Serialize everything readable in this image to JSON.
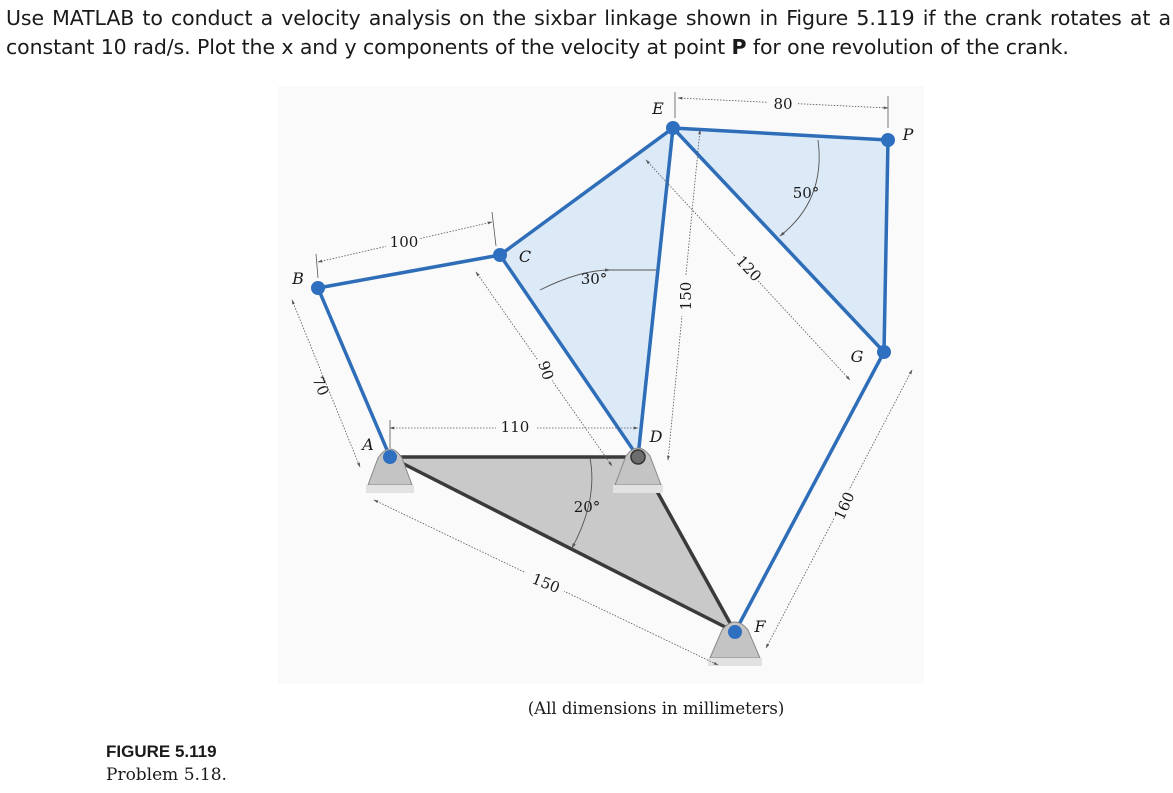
{
  "problem": {
    "line1": "Use MATLAB to conduct a velocity analysis on the sixbar linkage shown in Figure 5.119 if the crank rotates at a",
    "line2_pre": "constant 10 rad/s. Plot the x and y components of the velocity at point ",
    "line2_point": "P",
    "line2_post": " for one revolution of the crank."
  },
  "figure": {
    "points": {
      "A": "A",
      "B": "B",
      "C": "C",
      "D": "D",
      "E": "E",
      "F": "F",
      "G": "G",
      "P": "P"
    },
    "dimensions": {
      "AB": "70",
      "BC": "100",
      "CD": "90",
      "AD": "110",
      "AF": "150",
      "DE": "150",
      "EG": "120",
      "EP": "80",
      "GF": "160",
      "angle_C": "30°",
      "angle_A": "20°",
      "angle_E": "50°"
    },
    "note": "(All dimensions in millimeters)",
    "caption_title": "FIGURE 5.119",
    "caption_sub": "Problem 5.18.",
    "colors": {
      "link": "#2e6db8",
      "joint": "#2f6fbf",
      "triangle_fill": "#dce9f7",
      "ground_fill": "#c9c9c9",
      "ground_edge": "#3a3a3a",
      "support_fill": "#c4c4c4"
    }
  }
}
